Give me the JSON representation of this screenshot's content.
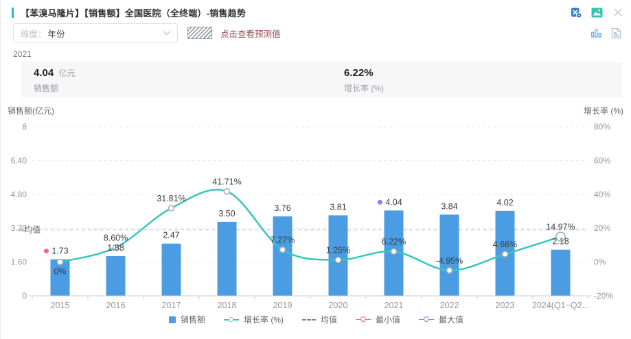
{
  "header": {
    "title": "【苯溴马隆片】【销售额】全国医院（全终端）-销售趋势",
    "icons": [
      "excel-export-icon",
      "image-export-icon",
      "close-icon"
    ]
  },
  "toolbar": {
    "dimension_label": "维度：",
    "dimension_value": "年份",
    "forecast_hint": "点击查看预测值",
    "icons": [
      "chevron-down-icon",
      "hatch-pattern-swatch",
      "chart-view-icon",
      "report-view-icon"
    ]
  },
  "summary": {
    "year": "2021",
    "sales_value": "4.04",
    "sales_unit": "亿元",
    "sales_label": "销售额",
    "growth_value": "6.22%",
    "growth_label": "增长率 (%)"
  },
  "chart_data": {
    "type": "bar+line",
    "categories": [
      "2015",
      "2016",
      "2017",
      "2018",
      "2019",
      "2020",
      "2021",
      "2022",
      "2023",
      "2024(Q1~Q2..."
    ],
    "series": [
      {
        "name": "销售额",
        "type": "bar",
        "axis": "left",
        "unit": "亿元",
        "values": [
          1.73,
          1.88,
          2.47,
          3.5,
          3.76,
          3.81,
          4.04,
          3.84,
          4.02,
          2.18
        ],
        "labels": [
          "1.73",
          "1.88",
          "2.47",
          "3.50",
          "3.76",
          "3.81",
          "4.04",
          "3.84",
          "4.02",
          "2.18"
        ]
      },
      {
        "name": "增长率 (%)",
        "type": "line",
        "axis": "right",
        "smooth": true,
        "values": [
          0,
          8.6,
          31.81,
          41.71,
          7.27,
          1.25,
          6.22,
          -4.95,
          4.66,
          14.97
        ],
        "labels": [
          "0%",
          "8.60%",
          "31.81%",
          "41.71%",
          "7.27%",
          "1.25%",
          "6.22%",
          "-4.95%",
          "4.66%",
          "14.97%"
        ]
      }
    ],
    "left_axis": {
      "title": "销售额(亿元)",
      "min": 0,
      "max": 8,
      "ticks": [
        "8",
        "6.40",
        "4.80",
        "3.20",
        "1.60",
        "0"
      ]
    },
    "right_axis": {
      "title": "增长率 (%)",
      "min": -20,
      "max": 80,
      "ticks": [
        "80%",
        "60%",
        "40%",
        "20%",
        "0%",
        "-20%"
      ]
    },
    "mean_line": {
      "label": "均值",
      "value": 3.12
    },
    "min_point": {
      "category": "2015",
      "value": 1.73,
      "legend": "最小值"
    },
    "max_point": {
      "category": "2021",
      "value": 4.04,
      "legend": "最大值"
    },
    "legend_items": [
      {
        "label": "销售额",
        "type": "bar"
      },
      {
        "label": "增长率 (%)",
        "type": "line"
      },
      {
        "label": "均值",
        "type": "dashed"
      },
      {
        "label": "最小值",
        "type": "marker-min"
      },
      {
        "label": "最大值",
        "type": "marker-max"
      }
    ],
    "grid": true,
    "legend_position": "bottom",
    "colors": {
      "bar": "#4A9DE2",
      "line": "#35C6C0",
      "min_marker": "#F5639A",
      "max_marker": "#8585F0",
      "mean_line": "#BDC2CA",
      "grid": "#E4E7ED",
      "axis": "#C9CED6",
      "tick_text": "#8F949E",
      "value_text": "#3A3D42",
      "accent": "#1EC2AE",
      "hint_text": "#9B4A4E"
    }
  }
}
